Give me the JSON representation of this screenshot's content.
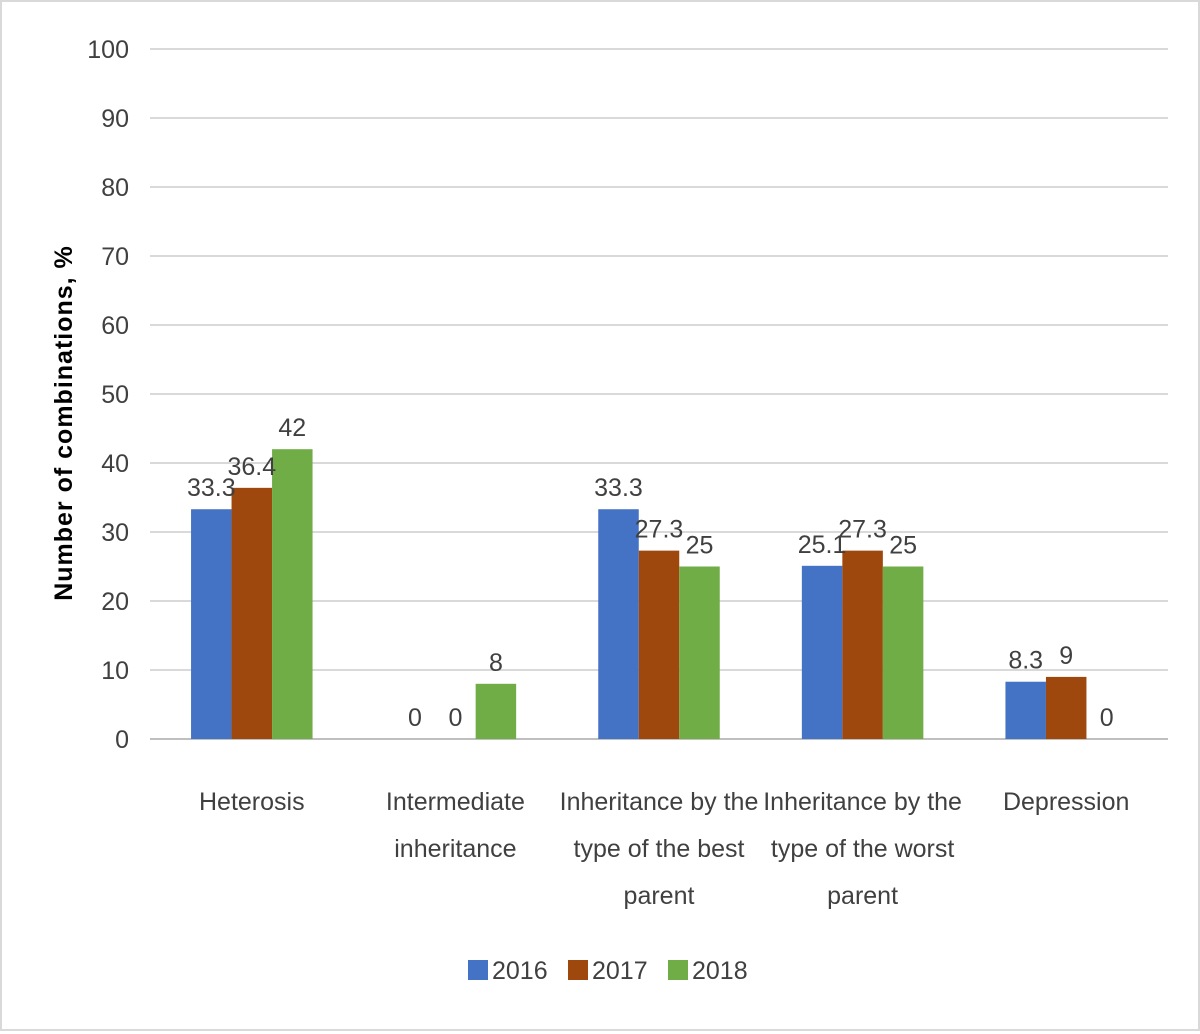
{
  "chart_data": {
    "type": "bar",
    "title": "",
    "xlabel": "",
    "ylabel": "Number of combinations, %",
    "ylim": [
      0,
      100
    ],
    "yticks": [
      "0",
      "10",
      "20",
      "30",
      "40",
      "50",
      "60",
      "70",
      "80",
      "90",
      "100"
    ],
    "grid": true,
    "legend_position": "bottom",
    "categories": [
      [
        "Heterosis"
      ],
      [
        "Intermediate",
        "inheritance"
      ],
      [
        "Inheritance by the",
        "type of the best",
        "parent"
      ],
      [
        "Inheritance by the",
        "type of the worst",
        "parent"
      ],
      [
        "Depression"
      ]
    ],
    "series": [
      {
        "name": "2016",
        "color": "#4472c4",
        "values": [
          33.3,
          0,
          33.3,
          25.1,
          8.3
        ]
      },
      {
        "name": "2017",
        "color": "#9e480e",
        "values": [
          36.4,
          0,
          27.3,
          27.3,
          9
        ]
      },
      {
        "name": "2018",
        "color": "#70ad47",
        "values": [
          42,
          8,
          25,
          25,
          0
        ]
      }
    ]
  }
}
